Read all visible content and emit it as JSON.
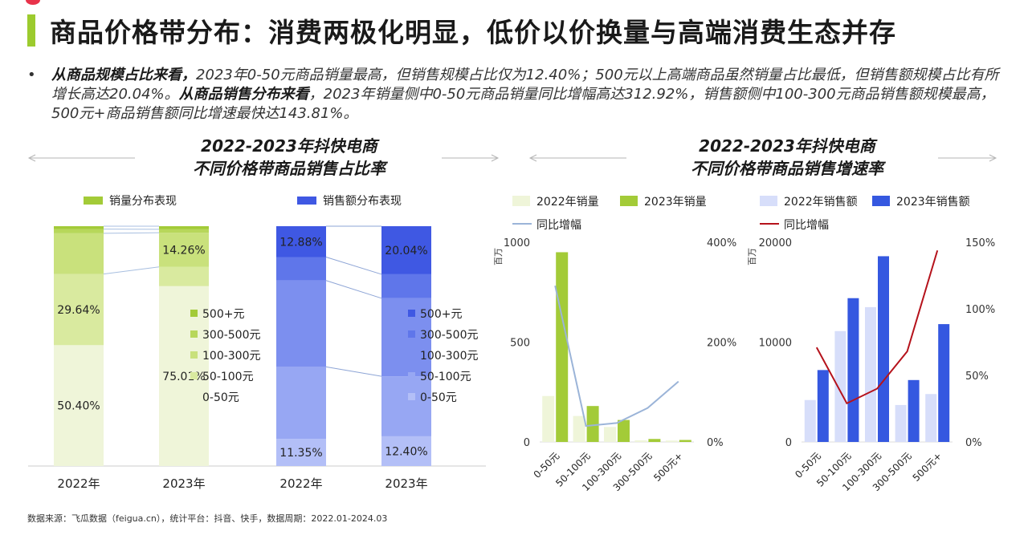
{
  "title": "商品价格带分布：消费两极化明显，低价以价换量与高端消费生态并存",
  "summary": {
    "bullet": "•",
    "bold1": "从商品规模占比来看，",
    "text1": "2023年0-50元商品销量最高，但销售规模占比仅为12.40%；500元以上高端商品虽然销量占比最低，但销售额规模占比有所增长高达20.04%。",
    "bold2": "从商品销售分布来看",
    "text2": "，2023年销量侧中0-50元商品销量同比增幅高达312.92%，销售额侧中100-300元商品销售额规模最高，500元+商品销售额同比增速最快达143.81%。"
  },
  "left_section": {
    "title_line1": "2022-2023年抖快电商",
    "title_line2": "不同价格带商品销售占比率"
  },
  "right_section": {
    "title_line1": "2022-2023年抖快电商",
    "title_line2": "不同价格带商品销售增速率"
  },
  "source": "数据来源：飞瓜数据（feigua.cn），统计平台：抖音、快手，数据周期：2022.01-2024.03",
  "colors": {
    "volume": [
      "#eff5d9",
      "#d9ea9f",
      "#c9e17c",
      "#b7d75a",
      "#a3cb38"
    ],
    "sales": [
      "#b3bff7",
      "#97a7f3",
      "#7c8fef",
      "#5f76ea",
      "#3f58e3"
    ],
    "vol_bar_2022": "#eff5d9",
    "vol_bar_2023": "#a3cb38",
    "vol_line": "#9bb4d8",
    "sales_bar_2022": "#d7defa",
    "sales_bar_2023": "#3558e0",
    "sales_line": "#b5121b"
  },
  "chart_data": [
    {
      "type": "bar",
      "stacked": true,
      "legend_title": "销量分布表现",
      "categories": [
        "2022年",
        "2023年"
      ],
      "segments": [
        "0-50元",
        "50-100元",
        "100-300元",
        "300-500元",
        "500+元"
      ],
      "legend_entries": [
        "500+元",
        "300-500元",
        "100-300元",
        "50-100元",
        "0-50元"
      ],
      "series": [
        {
          "name": "0-50元",
          "values": [
            50.4,
            75.01
          ],
          "labels": [
            "50.40%",
            "75.01%"
          ]
        },
        {
          "name": "50-100元",
          "values": [
            29.64,
            8.0
          ],
          "labels": [
            "29.64%",
            ""
          ]
        },
        {
          "name": "100-300元",
          "values": [
            17.0,
            14.26
          ],
          "labels": [
            "",
            "14.26%"
          ]
        },
        {
          "name": "300-500元",
          "values": [
            1.76,
            1.43
          ],
          "labels": [
            "",
            ""
          ]
        },
        {
          "name": "500+元",
          "values": [
            1.2,
            1.3
          ],
          "labels": [
            "",
            ""
          ]
        }
      ]
    },
    {
      "type": "bar",
      "stacked": true,
      "legend_title": "销售额分布表现",
      "categories": [
        "2022年",
        "2023年"
      ],
      "segments": [
        "0-50元",
        "50-100元",
        "100-300元",
        "300-500元",
        "500+元"
      ],
      "legend_entries": [
        "500+元",
        "300-500元",
        "100-300元",
        "50-100元",
        "0-50元"
      ],
      "series": [
        {
          "name": "0-50元",
          "values": [
            11.35,
            12.4
          ],
          "labels": [
            "11.35%",
            "12.40%"
          ]
        },
        {
          "name": "50-100元",
          "values": [
            30.0,
            25.0
          ],
          "labels": [
            "",
            ""
          ]
        },
        {
          "name": "100-300元",
          "values": [
            36.0,
            32.56
          ],
          "labels": [
            "",
            ""
          ]
        },
        {
          "name": "300-500元",
          "values": [
            9.77,
            10.0
          ],
          "labels": [
            "",
            ""
          ]
        },
        {
          "name": "500+元",
          "values": [
            12.88,
            20.04
          ],
          "labels": [
            "12.88%",
            "20.04%"
          ]
        }
      ]
    },
    {
      "type": "bar",
      "unit_label": "百万",
      "categories": [
        "0-50元",
        "50-100元",
        "100-300元",
        "300-500元",
        "500元+"
      ],
      "series": [
        {
          "name": "2022年销量",
          "values": [
            230,
            130,
            75,
            8,
            7
          ]
        },
        {
          "name": "2023年销量",
          "values": [
            950,
            180,
            110,
            15,
            10
          ]
        },
        {
          "name": "同比增幅",
          "type": "line",
          "axis": "right",
          "values": [
            312.92,
            32,
            38,
            68,
            121
          ]
        }
      ],
      "y_left": {
        "min": 0,
        "max": 1000,
        "ticks": [
          0,
          500,
          1000
        ],
        "tick_labels": [
          "0",
          "500",
          "1000"
        ]
      },
      "y_right": {
        "min": 0,
        "max": 400,
        "ticks": [
          0,
          200,
          400
        ],
        "tick_labels": [
          "0%",
          "200%",
          "400%"
        ]
      }
    },
    {
      "type": "bar",
      "unit_label": "百万",
      "categories": [
        "0-50元",
        "50-100元",
        "100-300元",
        "300-500元",
        "500元+"
      ],
      "series": [
        {
          "name": "2022年销售额",
          "values": [
            4200,
            11100,
            13500,
            3700,
            4800
          ]
        },
        {
          "name": "2023年销售额",
          "values": [
            7200,
            14400,
            18600,
            6200,
            11800
          ]
        },
        {
          "name": "同比增幅",
          "type": "line",
          "axis": "right",
          "values": [
            71,
            29,
            40,
            68,
            143.81
          ]
        }
      ],
      "y_left": {
        "min": 0,
        "max": 20000,
        "ticks": [
          0,
          10000,
          20000
        ],
        "tick_labels": [
          "0",
          "10000",
          "20000"
        ]
      },
      "y_right": {
        "min": 0,
        "max": 150,
        "ticks": [
          0,
          50,
          100,
          150
        ],
        "tick_labels": [
          "0%",
          "50%",
          "100%",
          "150%"
        ]
      }
    }
  ]
}
